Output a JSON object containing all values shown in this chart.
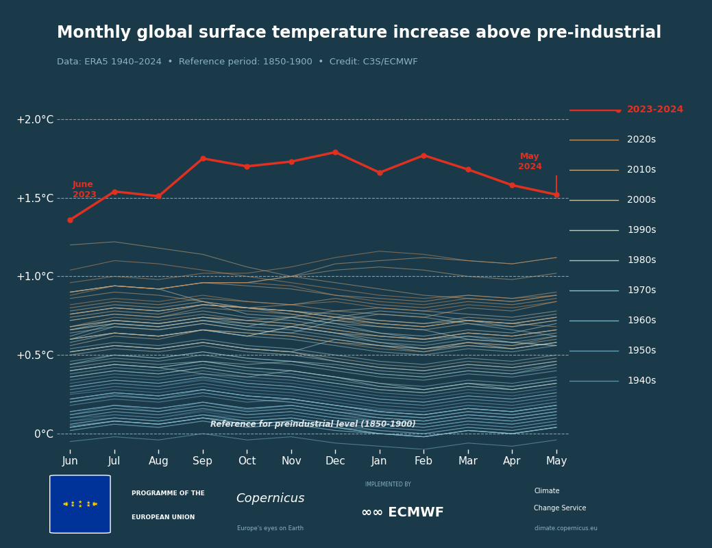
{
  "title": "Monthly global surface temperature increase above pre-industrial",
  "subtitle": "Data: ERA5 1940–2024  •  Reference period: 1850-1900  •  Credit: C3S/ECMWF",
  "bg_color": "#1a3a4a",
  "text_color": "#ffffff",
  "subtitle_color": "#8ab4c4",
  "months": [
    "Jun",
    "Jul",
    "Aug",
    "Sep",
    "Oct",
    "Nov",
    "Dec",
    "Jan",
    "Feb",
    "Mar",
    "Apr",
    "May"
  ],
  "ylim": [
    -0.1,
    2.2
  ],
  "yticks": [
    0,
    0.5,
    1.0,
    1.5,
    2.0
  ],
  "ytick_labels": [
    "0°C",
    "+0.5°C",
    "+1.0°C",
    "+1.5°C",
    "+2.0°C"
  ],
  "hlines": [
    0,
    0.5,
    1.0,
    1.5,
    2.0
  ],
  "decade_colors": {
    "1940s": "#5b8fa8",
    "1950s": "#6a9fb8",
    "1960s": "#7ab0c4",
    "1970s": "#8abfcc",
    "1980s": "#a0c8cc",
    "1990s": "#b8d0cc",
    "2000s": "#c8c0a8",
    "2010s": "#c8a880",
    "2020s": "#c89060",
    "2023-2024": "#e03020"
  },
  "legend_entries": [
    "2023-2024",
    "2020s",
    "2010s",
    "2000s",
    "1990s",
    "1980s",
    "1970s",
    "1960s",
    "1950s",
    "1940s"
  ],
  "legend_colors": [
    "#e03020",
    "#c89060",
    "#c8a880",
    "#c8c0a8",
    "#b8d0cc",
    "#a0c8cc",
    "#8abfcc",
    "#7ab0c4",
    "#6a9fb8",
    "#5b8fa8"
  ],
  "ref_label": "Reference for preindustrial level (1850-1900)",
  "year_2023_2024": [
    1.36,
    1.54,
    1.51,
    1.75,
    1.7,
    1.73,
    1.79,
    1.66,
    1.77,
    1.68,
    1.58,
    1.52
  ],
  "historical_data": {
    "1940": [
      0.12,
      0.18,
      0.14,
      0.2,
      0.15,
      0.18,
      0.14,
      0.1,
      0.08,
      0.12,
      0.1,
      0.14
    ],
    "1941": [
      0.2,
      0.25,
      0.22,
      0.28,
      0.24,
      0.22,
      0.18,
      0.15,
      0.14,
      0.18,
      0.16,
      0.2
    ],
    "1942": [
      0.1,
      0.12,
      0.1,
      0.15,
      0.12,
      0.14,
      0.1,
      0.08,
      0.06,
      0.1,
      0.08,
      0.12
    ],
    "1943": [
      0.14,
      0.18,
      0.16,
      0.2,
      0.16,
      0.18,
      0.14,
      0.12,
      0.1,
      0.14,
      0.12,
      0.16
    ],
    "1944": [
      0.28,
      0.32,
      0.3,
      0.35,
      0.3,
      0.28,
      0.24,
      0.2,
      0.18,
      0.22,
      0.2,
      0.24
    ],
    "1945": [
      0.22,
      0.26,
      0.24,
      0.28,
      0.24,
      0.22,
      0.18,
      0.14,
      0.12,
      0.16,
      0.14,
      0.18
    ],
    "1946": [
      0.08,
      0.1,
      0.08,
      0.12,
      0.1,
      0.12,
      0.08,
      0.06,
      0.04,
      0.08,
      0.06,
      0.1
    ],
    "1947": [
      0.1,
      0.14,
      0.12,
      0.16,
      0.12,
      0.14,
      0.1,
      0.08,
      0.06,
      0.1,
      0.08,
      0.12
    ],
    "1948": [
      0.12,
      0.16,
      0.14,
      0.18,
      0.14,
      0.16,
      0.12,
      0.1,
      0.08,
      0.12,
      0.1,
      0.14
    ],
    "1949": [
      0.08,
      0.12,
      0.1,
      0.14,
      0.1,
      0.12,
      0.08,
      0.06,
      0.04,
      0.08,
      0.06,
      0.1
    ],
    "1950": [
      0.05,
      0.08,
      0.06,
      0.1,
      0.08,
      0.1,
      0.06,
      0.04,
      0.02,
      0.06,
      0.04,
      0.08
    ],
    "1951": [
      0.22,
      0.26,
      0.24,
      0.28,
      0.24,
      0.22,
      0.18,
      0.14,
      0.12,
      0.16,
      0.14,
      0.18
    ],
    "1952": [
      0.2,
      0.24,
      0.22,
      0.26,
      0.22,
      0.2,
      0.16,
      0.12,
      0.1,
      0.14,
      0.12,
      0.16
    ],
    "1953": [
      0.25,
      0.28,
      0.26,
      0.3,
      0.26,
      0.24,
      0.2,
      0.16,
      0.14,
      0.18,
      0.16,
      0.2
    ],
    "1954": [
      0.06,
      0.1,
      0.08,
      0.12,
      0.08,
      0.1,
      0.06,
      0.04,
      0.02,
      0.06,
      0.04,
      0.08
    ],
    "1955": [
      0.04,
      0.08,
      0.06,
      0.1,
      0.06,
      0.08,
      0.04,
      0.02,
      0.0,
      0.04,
      0.02,
      0.06
    ],
    "1956": [
      0.02,
      0.06,
      0.04,
      0.08,
      0.04,
      0.06,
      0.02,
      0.0,
      -0.02,
      0.02,
      0.0,
      0.04
    ],
    "1957": [
      0.28,
      0.32,
      0.3,
      0.34,
      0.3,
      0.28,
      0.24,
      0.2,
      0.18,
      0.22,
      0.2,
      0.24
    ],
    "1958": [
      0.32,
      0.36,
      0.34,
      0.38,
      0.34,
      0.32,
      0.28,
      0.24,
      0.22,
      0.26,
      0.24,
      0.28
    ],
    "1959": [
      0.22,
      0.26,
      0.24,
      0.28,
      0.24,
      0.22,
      0.18,
      0.14,
      0.12,
      0.16,
      0.14,
      0.18
    ],
    "1960": [
      0.14,
      0.18,
      0.16,
      0.2,
      0.16,
      0.18,
      0.14,
      0.1,
      0.08,
      0.12,
      0.1,
      0.14
    ],
    "1961": [
      0.3,
      0.34,
      0.32,
      0.36,
      0.32,
      0.3,
      0.26,
      0.22,
      0.2,
      0.24,
      0.22,
      0.26
    ],
    "1962": [
      0.26,
      0.3,
      0.28,
      0.32,
      0.28,
      0.26,
      0.22,
      0.18,
      0.16,
      0.2,
      0.18,
      0.22
    ],
    "1963": [
      0.18,
      0.22,
      0.2,
      0.24,
      0.2,
      0.22,
      0.18,
      0.14,
      0.12,
      0.16,
      0.14,
      0.18
    ],
    "1964": [
      -0.05,
      -0.02,
      -0.04,
      0.0,
      -0.04,
      -0.02,
      -0.06,
      -0.08,
      -0.1,
      -0.06,
      -0.08,
      -0.04
    ],
    "1965": [
      0.02,
      0.06,
      0.04,
      0.08,
      0.04,
      0.06,
      0.02,
      0.0,
      -0.02,
      0.02,
      0.0,
      0.04
    ],
    "1966": [
      0.14,
      0.18,
      0.16,
      0.2,
      0.16,
      0.18,
      0.14,
      0.1,
      0.08,
      0.12,
      0.1,
      0.14
    ],
    "1967": [
      0.1,
      0.14,
      0.12,
      0.16,
      0.12,
      0.14,
      0.1,
      0.06,
      0.04,
      0.08,
      0.06,
      0.1
    ],
    "1968": [
      0.04,
      0.08,
      0.06,
      0.1,
      0.06,
      0.08,
      0.04,
      0.0,
      -0.02,
      0.02,
      0.0,
      0.04
    ],
    "1969": [
      0.34,
      0.38,
      0.36,
      0.4,
      0.36,
      0.34,
      0.3,
      0.26,
      0.24,
      0.28,
      0.26,
      0.3
    ],
    "1970": [
      0.22,
      0.26,
      0.24,
      0.28,
      0.24,
      0.22,
      0.18,
      0.14,
      0.12,
      0.16,
      0.14,
      0.18
    ],
    "1971": [
      0.04,
      0.08,
      0.06,
      0.1,
      0.06,
      0.08,
      0.04,
      0.0,
      -0.02,
      0.02,
      0.0,
      0.04
    ],
    "1972": [
      0.2,
      0.24,
      0.22,
      0.26,
      0.22,
      0.2,
      0.16,
      0.12,
      0.1,
      0.14,
      0.12,
      0.16
    ],
    "1973": [
      0.38,
      0.42,
      0.4,
      0.44,
      0.4,
      0.38,
      0.34,
      0.3,
      0.28,
      0.32,
      0.3,
      0.34
    ],
    "1974": [
      0.04,
      0.08,
      0.06,
      0.1,
      0.06,
      0.08,
      0.04,
      0.0,
      -0.02,
      0.02,
      0.0,
      0.04
    ],
    "1975": [
      0.12,
      0.16,
      0.14,
      0.18,
      0.14,
      0.16,
      0.12,
      0.08,
      0.06,
      0.1,
      0.08,
      0.12
    ],
    "1976": [
      0.06,
      0.1,
      0.08,
      0.12,
      0.08,
      0.1,
      0.06,
      0.02,
      0.0,
      0.04,
      0.02,
      0.06
    ],
    "1977": [
      0.46,
      0.5,
      0.48,
      0.52,
      0.48,
      0.46,
      0.42,
      0.38,
      0.36,
      0.4,
      0.38,
      0.42
    ],
    "1978": [
      0.3,
      0.34,
      0.32,
      0.36,
      0.32,
      0.3,
      0.26,
      0.22,
      0.2,
      0.24,
      0.22,
      0.26
    ],
    "1979": [
      0.4,
      0.44,
      0.42,
      0.46,
      0.42,
      0.4,
      0.36,
      0.32,
      0.3,
      0.34,
      0.32,
      0.36
    ],
    "1980": [
      0.54,
      0.58,
      0.56,
      0.6,
      0.56,
      0.54,
      0.5,
      0.46,
      0.44,
      0.48,
      0.46,
      0.5
    ],
    "1981": [
      0.6,
      0.64,
      0.62,
      0.66,
      0.62,
      0.6,
      0.56,
      0.52,
      0.5,
      0.54,
      0.52,
      0.56
    ],
    "1982": [
      0.36,
      0.4,
      0.38,
      0.42,
      0.38,
      0.36,
      0.32,
      0.28,
      0.26,
      0.3,
      0.28,
      0.32
    ],
    "1983": [
      0.62,
      0.7,
      0.68,
      0.72,
      0.68,
      0.74,
      0.7,
      0.64,
      0.6,
      0.62,
      0.58,
      0.56
    ],
    "1984": [
      0.4,
      0.44,
      0.42,
      0.46,
      0.42,
      0.4,
      0.36,
      0.3,
      0.28,
      0.32,
      0.3,
      0.34
    ],
    "1985": [
      0.36,
      0.4,
      0.38,
      0.42,
      0.38,
      0.36,
      0.32,
      0.28,
      0.26,
      0.3,
      0.28,
      0.32
    ],
    "1986": [
      0.44,
      0.48,
      0.46,
      0.5,
      0.46,
      0.44,
      0.4,
      0.36,
      0.34,
      0.38,
      0.36,
      0.4
    ],
    "1987": [
      0.6,
      0.68,
      0.66,
      0.7,
      0.66,
      0.64,
      0.72,
      0.76,
      0.74,
      0.7,
      0.66,
      0.62
    ],
    "1988": [
      0.66,
      0.7,
      0.68,
      0.72,
      0.68,
      0.66,
      0.62,
      0.58,
      0.56,
      0.6,
      0.58,
      0.62
    ],
    "1989": [
      0.44,
      0.5,
      0.48,
      0.52,
      0.48,
      0.46,
      0.42,
      0.38,
      0.36,
      0.4,
      0.38,
      0.44
    ],
    "1990": [
      0.72,
      0.76,
      0.74,
      0.78,
      0.74,
      0.72,
      0.68,
      0.64,
      0.62,
      0.66,
      0.64,
      0.7
    ],
    "1991": [
      0.6,
      0.64,
      0.62,
      0.66,
      0.62,
      0.68,
      0.64,
      0.58,
      0.54,
      0.58,
      0.54,
      0.58
    ],
    "1992": [
      0.4,
      0.44,
      0.42,
      0.38,
      0.36,
      0.4,
      0.36,
      0.32,
      0.28,
      0.32,
      0.28,
      0.32
    ],
    "1993": [
      0.42,
      0.46,
      0.44,
      0.46,
      0.44,
      0.46,
      0.44,
      0.4,
      0.38,
      0.42,
      0.4,
      0.44
    ],
    "1994": [
      0.52,
      0.56,
      0.54,
      0.58,
      0.54,
      0.52,
      0.6,
      0.56,
      0.52,
      0.56,
      0.54,
      0.58
    ],
    "1995": [
      0.66,
      0.72,
      0.7,
      0.74,
      0.7,
      0.68,
      0.64,
      0.6,
      0.58,
      0.62,
      0.6,
      0.64
    ],
    "1996": [
      0.5,
      0.54,
      0.52,
      0.56,
      0.52,
      0.5,
      0.46,
      0.42,
      0.4,
      0.44,
      0.42,
      0.46
    ],
    "1997": [
      0.58,
      0.64,
      0.62,
      0.66,
      0.62,
      0.68,
      0.74,
      0.78,
      0.76,
      0.72,
      0.68,
      0.72
    ],
    "1998": [
      0.9,
      0.94,
      0.92,
      0.84,
      0.76,
      0.74,
      0.7,
      0.68,
      0.66,
      0.6,
      0.58,
      0.56
    ],
    "1999": [
      0.52,
      0.56,
      0.54,
      0.58,
      0.54,
      0.52,
      0.46,
      0.42,
      0.4,
      0.44,
      0.42,
      0.46
    ],
    "2000": [
      0.52,
      0.56,
      0.54,
      0.58,
      0.54,
      0.52,
      0.48,
      0.44,
      0.42,
      0.46,
      0.44,
      0.48
    ],
    "2001": [
      0.66,
      0.7,
      0.68,
      0.72,
      0.7,
      0.68,
      0.64,
      0.62,
      0.6,
      0.64,
      0.62,
      0.66
    ],
    "2002": [
      0.76,
      0.8,
      0.78,
      0.82,
      0.8,
      0.78,
      0.76,
      0.72,
      0.7,
      0.74,
      0.72,
      0.76
    ],
    "2003": [
      0.76,
      0.8,
      0.78,
      0.82,
      0.8,
      0.76,
      0.72,
      0.68,
      0.66,
      0.7,
      0.68,
      0.72
    ],
    "2004": [
      0.64,
      0.68,
      0.66,
      0.7,
      0.66,
      0.64,
      0.6,
      0.56,
      0.54,
      0.58,
      0.56,
      0.6
    ],
    "2005": [
      0.74,
      0.78,
      0.76,
      0.82,
      0.8,
      0.78,
      0.74,
      0.72,
      0.7,
      0.72,
      0.7,
      0.74
    ],
    "2006": [
      0.68,
      0.72,
      0.7,
      0.74,
      0.72,
      0.7,
      0.66,
      0.62,
      0.6,
      0.64,
      0.62,
      0.66
    ],
    "2007": [
      0.78,
      0.82,
      0.8,
      0.84,
      0.8,
      0.78,
      0.74,
      0.7,
      0.68,
      0.72,
      0.7,
      0.74
    ],
    "2008": [
      0.56,
      0.62,
      0.6,
      0.66,
      0.64,
      0.62,
      0.58,
      0.56,
      0.54,
      0.56,
      0.54,
      0.58
    ],
    "2009": [
      0.68,
      0.72,
      0.7,
      0.74,
      0.72,
      0.74,
      0.78,
      0.8,
      0.78,
      0.76,
      0.74,
      0.78
    ],
    "2010": [
      0.86,
      0.9,
      0.88,
      0.84,
      0.8,
      0.78,
      0.74,
      0.7,
      0.68,
      0.72,
      0.7,
      0.68
    ],
    "2011": [
      0.6,
      0.64,
      0.62,
      0.66,
      0.64,
      0.62,
      0.58,
      0.54,
      0.52,
      0.58,
      0.56,
      0.62
    ],
    "2012": [
      0.68,
      0.74,
      0.72,
      0.76,
      0.72,
      0.7,
      0.66,
      0.62,
      0.6,
      0.64,
      0.62,
      0.66
    ],
    "2013": [
      0.72,
      0.76,
      0.74,
      0.8,
      0.78,
      0.76,
      0.72,
      0.7,
      0.68,
      0.72,
      0.7,
      0.74
    ],
    "2014": [
      0.76,
      0.8,
      0.78,
      0.82,
      0.8,
      0.82,
      0.86,
      0.82,
      0.8,
      0.84,
      0.82,
      0.86
    ],
    "2015": [
      0.9,
      0.94,
      0.92,
      0.96,
      0.96,
      1.0,
      1.08,
      1.1,
      1.12,
      1.1,
      1.08,
      1.12
    ],
    "2016": [
      1.2,
      1.22,
      1.18,
      1.14,
      1.06,
      1.0,
      0.96,
      0.92,
      0.88,
      0.86,
      0.84,
      0.88
    ],
    "2017": [
      0.9,
      0.94,
      0.92,
      0.96,
      0.94,
      0.92,
      0.88,
      0.86,
      0.84,
      0.88,
      0.86,
      0.9
    ],
    "2018": [
      0.8,
      0.84,
      0.82,
      0.86,
      0.84,
      0.82,
      0.78,
      0.76,
      0.74,
      0.8,
      0.78,
      0.84
    ],
    "2019": [
      0.9,
      0.94,
      0.92,
      0.96,
      0.96,
      1.0,
      1.04,
      1.06,
      1.04,
      1.0,
      0.98,
      1.02
    ],
    "2020": [
      1.04,
      1.1,
      1.08,
      1.04,
      1.0,
      0.96,
      0.92,
      0.88,
      0.86,
      0.88,
      0.86,
      0.88
    ],
    "2021": [
      0.82,
      0.86,
      0.84,
      0.88,
      0.84,
      0.82,
      0.84,
      0.8,
      0.78,
      0.82,
      0.8,
      0.84
    ],
    "2022": [
      0.88,
      0.94,
      0.92,
      0.96,
      0.96,
      0.94,
      0.88,
      0.84,
      0.82,
      0.86,
      0.84,
      0.88
    ],
    "2023_early": [
      0.96,
      1.0,
      0.98,
      1.02,
      1.02,
      1.06,
      1.12,
      1.16,
      1.14,
      1.1,
      1.08,
      1.12
    ]
  }
}
